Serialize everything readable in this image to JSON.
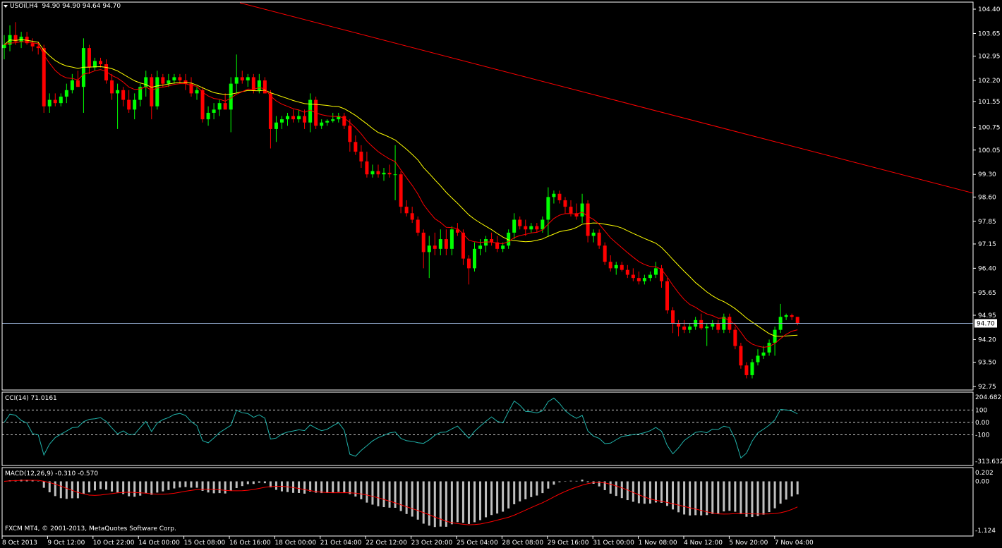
{
  "header": {
    "symbol": "USOil,H4",
    "ohlc": "94.90 94.90 94.64 94.70"
  },
  "price_axis": [
    "104.40",
    "103.65",
    "102.95",
    "102.20",
    "101.55",
    "100.75",
    "100.05",
    "99.30",
    "98.60",
    "97.85",
    "97.15",
    "96.40",
    "95.65",
    "94.95",
    "94.20",
    "93.50",
    "92.75"
  ],
  "current_price_label": "94.70",
  "time_axis": [
    "8 Oct 2013",
    "9 Oct 12:00",
    "10 Oct 22:00",
    "14 Oct 00:00",
    "15 Oct 08:00",
    "16 Oct 16:00",
    "18 Oct 00:00",
    "21 Oct 04:00",
    "22 Oct 12:00",
    "23 Oct 20:00",
    "25 Oct 04:00",
    "28 Oct 08:00",
    "29 Oct 16:00",
    "31 Oct 00:00",
    "1 Nov 08:00",
    "4 Nov 12:00",
    "5 Nov 20:00",
    "7 Nov 04:00"
  ],
  "cci": {
    "label": "CCI(14) 71.0161",
    "axis": [
      "204.6825",
      "100",
      "0.00",
      "-100",
      "-313.632"
    ]
  },
  "macd": {
    "label": "MACD(12,26,9) -0.310 -0.570",
    "axis": [
      "0.202",
      "0.00",
      "-1.124"
    ]
  },
  "footer": "FXCM MT4, © 2001-2013, MetaQuotes Software Corp.",
  "colors": {
    "background": "#000000",
    "bull": "#00ff00",
    "bear": "#ff0000",
    "ma_fast": "#ff0000",
    "ma_slow": "#ffff00",
    "trendline": "#ff0000",
    "price_line": "#8ea6c9",
    "cci_line": "#20b2aa",
    "macd_hist": "#c0c0c0",
    "macd_signal": "#ff0000"
  },
  "chart_data": {
    "type": "candlestick",
    "timeframe": "H4",
    "ylim": [
      92.7,
      104.6
    ],
    "candles": [
      {
        "o": 103.2,
        "h": 103.6,
        "l": 102.85,
        "c": 103.3
      },
      {
        "o": 103.3,
        "h": 103.9,
        "l": 103.1,
        "c": 103.6
      },
      {
        "o": 103.6,
        "h": 104.0,
        "l": 103.3,
        "c": 103.4
      },
      {
        "o": 103.4,
        "h": 103.7,
        "l": 103.2,
        "c": 103.55
      },
      {
        "o": 103.55,
        "h": 103.7,
        "l": 103.3,
        "c": 103.35
      },
      {
        "o": 103.35,
        "h": 103.5,
        "l": 103.1,
        "c": 103.25
      },
      {
        "o": 103.25,
        "h": 103.4,
        "l": 103.0,
        "c": 103.2
      },
      {
        "o": 103.2,
        "h": 103.3,
        "l": 101.2,
        "c": 101.4
      },
      {
        "o": 101.4,
        "h": 101.8,
        "l": 101.2,
        "c": 101.6
      },
      {
        "o": 101.6,
        "h": 101.8,
        "l": 101.4,
        "c": 101.5
      },
      {
        "o": 101.5,
        "h": 101.8,
        "l": 101.4,
        "c": 101.7
      },
      {
        "o": 101.7,
        "h": 102.1,
        "l": 101.5,
        "c": 101.9
      },
      {
        "o": 101.9,
        "h": 102.4,
        "l": 101.8,
        "c": 102.2
      },
      {
        "o": 102.2,
        "h": 102.5,
        "l": 102.0,
        "c": 102.0
      },
      {
        "o": 102.0,
        "h": 103.5,
        "l": 101.2,
        "c": 103.2
      },
      {
        "o": 103.2,
        "h": 103.3,
        "l": 102.4,
        "c": 102.6
      },
      {
        "o": 102.6,
        "h": 102.9,
        "l": 102.5,
        "c": 102.8
      },
      {
        "o": 102.8,
        "h": 102.9,
        "l": 102.6,
        "c": 102.7
      },
      {
        "o": 102.7,
        "h": 102.85,
        "l": 102.1,
        "c": 102.2
      },
      {
        "o": 102.2,
        "h": 102.4,
        "l": 101.6,
        "c": 101.8
      },
      {
        "o": 101.8,
        "h": 102.1,
        "l": 100.7,
        "c": 101.9
      },
      {
        "o": 101.9,
        "h": 102.0,
        "l": 101.4,
        "c": 101.6
      },
      {
        "o": 101.6,
        "h": 101.9,
        "l": 101.2,
        "c": 101.3
      },
      {
        "o": 101.3,
        "h": 101.8,
        "l": 101.0,
        "c": 101.6
      },
      {
        "o": 101.6,
        "h": 102.1,
        "l": 101.4,
        "c": 102.0
      },
      {
        "o": 102.0,
        "h": 102.5,
        "l": 101.7,
        "c": 102.3
      },
      {
        "o": 102.3,
        "h": 102.4,
        "l": 101.0,
        "c": 101.4
      },
      {
        "o": 101.4,
        "h": 102.5,
        "l": 101.3,
        "c": 102.3
      },
      {
        "o": 102.3,
        "h": 102.4,
        "l": 102.0,
        "c": 102.1
      },
      {
        "o": 102.1,
        "h": 102.4,
        "l": 102.0,
        "c": 102.2
      },
      {
        "o": 102.2,
        "h": 102.4,
        "l": 102.1,
        "c": 102.3
      },
      {
        "o": 102.3,
        "h": 102.4,
        "l": 102.1,
        "c": 102.2
      },
      {
        "o": 102.2,
        "h": 102.4,
        "l": 101.9,
        "c": 102.1
      },
      {
        "o": 102.1,
        "h": 102.3,
        "l": 101.7,
        "c": 101.8
      },
      {
        "o": 101.8,
        "h": 102.0,
        "l": 101.6,
        "c": 101.9
      },
      {
        "o": 101.9,
        "h": 102.0,
        "l": 100.9,
        "c": 101.0
      },
      {
        "o": 101.0,
        "h": 101.4,
        "l": 100.8,
        "c": 101.2
      },
      {
        "o": 101.2,
        "h": 101.5,
        "l": 101.0,
        "c": 101.3
      },
      {
        "o": 101.3,
        "h": 101.6,
        "l": 101.1,
        "c": 101.5
      },
      {
        "o": 101.5,
        "h": 101.8,
        "l": 101.4,
        "c": 101.3
      },
      {
        "o": 101.3,
        "h": 102.3,
        "l": 100.6,
        "c": 102.1
      },
      {
        "o": 102.1,
        "h": 103.0,
        "l": 101.8,
        "c": 102.3
      },
      {
        "o": 102.3,
        "h": 102.5,
        "l": 102.1,
        "c": 102.2
      },
      {
        "o": 102.2,
        "h": 102.4,
        "l": 102.0,
        "c": 102.3
      },
      {
        "o": 102.3,
        "h": 102.4,
        "l": 101.8,
        "c": 101.9
      },
      {
        "o": 101.9,
        "h": 102.4,
        "l": 101.8,
        "c": 102.2
      },
      {
        "o": 102.2,
        "h": 102.3,
        "l": 101.8,
        "c": 101.8
      },
      {
        "o": 101.8,
        "h": 101.9,
        "l": 100.1,
        "c": 100.7
      },
      {
        "o": 100.7,
        "h": 101.1,
        "l": 100.3,
        "c": 100.9
      },
      {
        "o": 100.9,
        "h": 101.1,
        "l": 100.7,
        "c": 101.0
      },
      {
        "o": 101.0,
        "h": 101.2,
        "l": 100.8,
        "c": 101.1
      },
      {
        "o": 101.1,
        "h": 101.3,
        "l": 100.9,
        "c": 101.0
      },
      {
        "o": 101.0,
        "h": 101.3,
        "l": 100.9,
        "c": 101.1
      },
      {
        "o": 101.1,
        "h": 101.3,
        "l": 100.7,
        "c": 100.9
      },
      {
        "o": 100.9,
        "h": 101.8,
        "l": 100.6,
        "c": 101.6
      },
      {
        "o": 101.6,
        "h": 101.7,
        "l": 100.7,
        "c": 100.8
      },
      {
        "o": 100.8,
        "h": 101.0,
        "l": 100.7,
        "c": 100.9
      },
      {
        "o": 100.9,
        "h": 101.0,
        "l": 100.8,
        "c": 100.95
      },
      {
        "o": 100.95,
        "h": 101.2,
        "l": 100.9,
        "c": 101.0
      },
      {
        "o": 101.0,
        "h": 101.2,
        "l": 100.9,
        "c": 101.1
      },
      {
        "o": 101.1,
        "h": 101.2,
        "l": 100.7,
        "c": 100.8
      },
      {
        "o": 100.8,
        "h": 101.0,
        "l": 100.0,
        "c": 100.3
      },
      {
        "o": 100.3,
        "h": 100.5,
        "l": 99.9,
        "c": 100.0
      },
      {
        "o": 100.0,
        "h": 100.2,
        "l": 99.5,
        "c": 99.7
      },
      {
        "o": 99.7,
        "h": 100.0,
        "l": 99.2,
        "c": 99.3
      },
      {
        "o": 99.3,
        "h": 99.6,
        "l": 99.2,
        "c": 99.4
      },
      {
        "o": 99.4,
        "h": 99.6,
        "l": 99.2,
        "c": 99.3
      },
      {
        "o": 99.3,
        "h": 99.5,
        "l": 99.1,
        "c": 99.35
      },
      {
        "o": 99.35,
        "h": 99.6,
        "l": 99.2,
        "c": 99.3
      },
      {
        "o": 99.3,
        "h": 100.2,
        "l": 98.5,
        "c": 99.3
      },
      {
        "o": 99.3,
        "h": 99.4,
        "l": 98.1,
        "c": 98.3
      },
      {
        "o": 98.3,
        "h": 98.5,
        "l": 98.0,
        "c": 98.1
      },
      {
        "o": 98.1,
        "h": 98.3,
        "l": 97.8,
        "c": 97.9
      },
      {
        "o": 97.9,
        "h": 98.0,
        "l": 97.4,
        "c": 97.5
      },
      {
        "o": 97.5,
        "h": 97.6,
        "l": 96.4,
        "c": 96.9
      },
      {
        "o": 96.9,
        "h": 97.4,
        "l": 96.1,
        "c": 97.1
      },
      {
        "o": 97.1,
        "h": 97.5,
        "l": 96.8,
        "c": 97.0
      },
      {
        "o": 97.0,
        "h": 97.6,
        "l": 96.8,
        "c": 97.3
      },
      {
        "o": 97.3,
        "h": 97.6,
        "l": 96.8,
        "c": 97.0
      },
      {
        "o": 97.0,
        "h": 97.7,
        "l": 96.8,
        "c": 97.6
      },
      {
        "o": 97.6,
        "h": 97.8,
        "l": 97.4,
        "c": 97.5
      },
      {
        "o": 97.5,
        "h": 97.6,
        "l": 96.5,
        "c": 96.7
      },
      {
        "o": 96.7,
        "h": 96.8,
        "l": 95.9,
        "c": 96.4
      },
      {
        "o": 96.4,
        "h": 97.2,
        "l": 96.3,
        "c": 97.0
      },
      {
        "o": 97.0,
        "h": 97.3,
        "l": 96.8,
        "c": 97.1
      },
      {
        "o": 97.1,
        "h": 97.4,
        "l": 96.9,
        "c": 97.3
      },
      {
        "o": 97.3,
        "h": 97.5,
        "l": 97.1,
        "c": 97.2
      },
      {
        "o": 97.2,
        "h": 97.4,
        "l": 96.9,
        "c": 97.0
      },
      {
        "o": 97.0,
        "h": 97.2,
        "l": 96.9,
        "c": 97.1
      },
      {
        "o": 97.1,
        "h": 97.6,
        "l": 97.0,
        "c": 97.5
      },
      {
        "o": 97.5,
        "h": 98.1,
        "l": 97.3,
        "c": 97.9
      },
      {
        "o": 97.9,
        "h": 98.0,
        "l": 97.6,
        "c": 97.7
      },
      {
        "o": 97.7,
        "h": 97.9,
        "l": 97.4,
        "c": 97.6
      },
      {
        "o": 97.6,
        "h": 97.8,
        "l": 97.5,
        "c": 97.7
      },
      {
        "o": 97.7,
        "h": 97.8,
        "l": 97.5,
        "c": 97.6
      },
      {
        "o": 97.6,
        "h": 98.0,
        "l": 97.5,
        "c": 97.9
      },
      {
        "o": 97.9,
        "h": 98.9,
        "l": 97.4,
        "c": 98.6
      },
      {
        "o": 98.6,
        "h": 98.8,
        "l": 98.4,
        "c": 98.7
      },
      {
        "o": 98.7,
        "h": 98.8,
        "l": 98.4,
        "c": 98.5
      },
      {
        "o": 98.5,
        "h": 98.6,
        "l": 98.1,
        "c": 98.3
      },
      {
        "o": 98.3,
        "h": 98.5,
        "l": 98.0,
        "c": 98.1
      },
      {
        "o": 98.1,
        "h": 98.4,
        "l": 97.9,
        "c": 98.0
      },
      {
        "o": 98.0,
        "h": 98.7,
        "l": 97.8,
        "c": 98.4
      },
      {
        "o": 98.4,
        "h": 98.5,
        "l": 97.2,
        "c": 97.4
      },
      {
        "o": 97.4,
        "h": 97.6,
        "l": 97.2,
        "c": 97.5
      },
      {
        "o": 97.5,
        "h": 97.6,
        "l": 97.0,
        "c": 97.1
      },
      {
        "o": 97.1,
        "h": 97.2,
        "l": 96.5,
        "c": 96.6
      },
      {
        "o": 96.6,
        "h": 96.8,
        "l": 96.3,
        "c": 96.4
      },
      {
        "o": 96.4,
        "h": 96.6,
        "l": 96.2,
        "c": 96.5
      },
      {
        "o": 96.5,
        "h": 96.6,
        "l": 96.3,
        "c": 96.35
      },
      {
        "o": 96.35,
        "h": 96.5,
        "l": 96.1,
        "c": 96.2
      },
      {
        "o": 96.2,
        "h": 96.4,
        "l": 96.0,
        "c": 96.1
      },
      {
        "o": 96.1,
        "h": 96.3,
        "l": 95.9,
        "c": 96.0
      },
      {
        "o": 96.0,
        "h": 96.2,
        "l": 95.9,
        "c": 96.1
      },
      {
        "o": 96.1,
        "h": 96.3,
        "l": 96.0,
        "c": 96.2
      },
      {
        "o": 96.2,
        "h": 96.6,
        "l": 96.1,
        "c": 96.4
      },
      {
        "o": 96.4,
        "h": 96.5,
        "l": 95.8,
        "c": 96.0
      },
      {
        "o": 96.0,
        "h": 96.1,
        "l": 95.0,
        "c": 95.1
      },
      {
        "o": 95.1,
        "h": 95.2,
        "l": 94.4,
        "c": 94.7
      },
      {
        "o": 94.7,
        "h": 94.8,
        "l": 94.3,
        "c": 94.6
      },
      {
        "o": 94.6,
        "h": 94.8,
        "l": 94.4,
        "c": 94.5
      },
      {
        "o": 94.5,
        "h": 94.7,
        "l": 94.4,
        "c": 94.6
      },
      {
        "o": 94.6,
        "h": 94.9,
        "l": 94.5,
        "c": 94.8
      },
      {
        "o": 94.8,
        "h": 95.0,
        "l": 94.5,
        "c": 94.55
      },
      {
        "o": 94.55,
        "h": 94.7,
        "l": 94.0,
        "c": 94.6
      },
      {
        "o": 94.6,
        "h": 94.8,
        "l": 94.5,
        "c": 94.7
      },
      {
        "o": 94.7,
        "h": 94.8,
        "l": 94.4,
        "c": 94.5
      },
      {
        "o": 94.5,
        "h": 95.0,
        "l": 94.4,
        "c": 94.9
      },
      {
        "o": 94.9,
        "h": 95.0,
        "l": 94.4,
        "c": 94.5
      },
      {
        "o": 94.5,
        "h": 94.6,
        "l": 93.9,
        "c": 94.0
      },
      {
        "o": 94.0,
        "h": 94.1,
        "l": 93.3,
        "c": 93.4
      },
      {
        "o": 93.4,
        "h": 93.5,
        "l": 93.0,
        "c": 93.1
      },
      {
        "o": 93.1,
        "h": 93.6,
        "l": 93.0,
        "c": 93.5
      },
      {
        "o": 93.5,
        "h": 93.9,
        "l": 93.4,
        "c": 93.7
      },
      {
        "o": 93.7,
        "h": 94.0,
        "l": 93.6,
        "c": 93.8
      },
      {
        "o": 93.8,
        "h": 94.2,
        "l": 93.7,
        "c": 94.1
      },
      {
        "o": 94.1,
        "h": 94.6,
        "l": 93.7,
        "c": 94.5
      },
      {
        "o": 94.5,
        "h": 95.3,
        "l": 94.4,
        "c": 94.9
      },
      {
        "o": 94.9,
        "h": 95.0,
        "l": 94.8,
        "c": 94.95
      },
      {
        "o": 94.95,
        "h": 95.0,
        "l": 94.8,
        "c": 94.9
      },
      {
        "o": 94.9,
        "h": 94.9,
        "l": 94.64,
        "c": 94.7
      }
    ],
    "trendline": {
      "from": [
        0,
        104.8
      ],
      "to": [
        135,
        100.0
      ]
    },
    "price_line": 94.7,
    "cci_axis_levels": [
      100,
      0,
      -100
    ],
    "cci_range": [
      -313.632,
      204.6825
    ],
    "macd_range": [
      -1.124,
      0.202
    ]
  }
}
